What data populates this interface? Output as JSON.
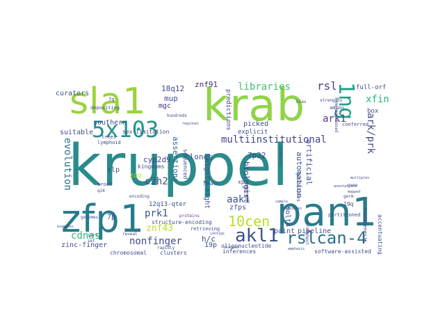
{
  "wordcloud": {
    "words": [
      "kruppel",
      "krab",
      "sla1",
      "pan1",
      "zfp1",
      "5x103",
      "1ng",
      "akl1",
      "rslcan-4",
      "10cen",
      "multiinstitutional",
      "libraries",
      "rsl",
      "ark1",
      "ark/prk",
      "xfin",
      "evolution",
      "c2h2",
      "prk1",
      "aak1",
      "cdnas",
      "nonfinger",
      "znf43",
      "18q12",
      "mup",
      "mgc",
      "znf91",
      "cyp2d9",
      "slp",
      "zoo",
      "7p22",
      "clones",
      "assertions",
      "automation",
      "artificial",
      "biologist",
      "eighty-eight",
      "h/c",
      "19p",
      "7p",
      "zfps",
      "molt4",
      "paint",
      "pipeline",
      "picked",
      "explicit",
      "predictions",
      "curators",
      "southern",
      "suitable",
      "zinc-finger",
      "12q13-qter",
      "chromosomal",
      "clusters",
      "inferences",
      "oligonucleotide",
      "software-assisted",
      "accentuating",
      "full-orf",
      "box",
      "conferred",
      "sex-limitation",
      "sequenced",
      "kingdoms",
      "structure-encoding",
      "lymphoid",
      "depositing",
      "retrieving",
      "expert",
      "guidelines",
      "19q",
      "partitioned",
      "transgenesis",
      "xp",
      "broad",
      "q24",
      "7q",
      "trees",
      "amino",
      "hundreds",
      "genomes",
      "examples",
      "throughput",
      "gene",
      "annotations",
      "sort",
      "set",
      "strengths",
      "homology-based",
      "puberty",
      "mapped",
      "reveal",
      "encoding",
      "proteins",
      "rapidly",
      "female",
      "multiplex",
      "germ",
      "bias",
      "sample",
      "candidates",
      "aligned",
      "contigs",
      "regional",
      "emphasis"
    ]
  }
}
